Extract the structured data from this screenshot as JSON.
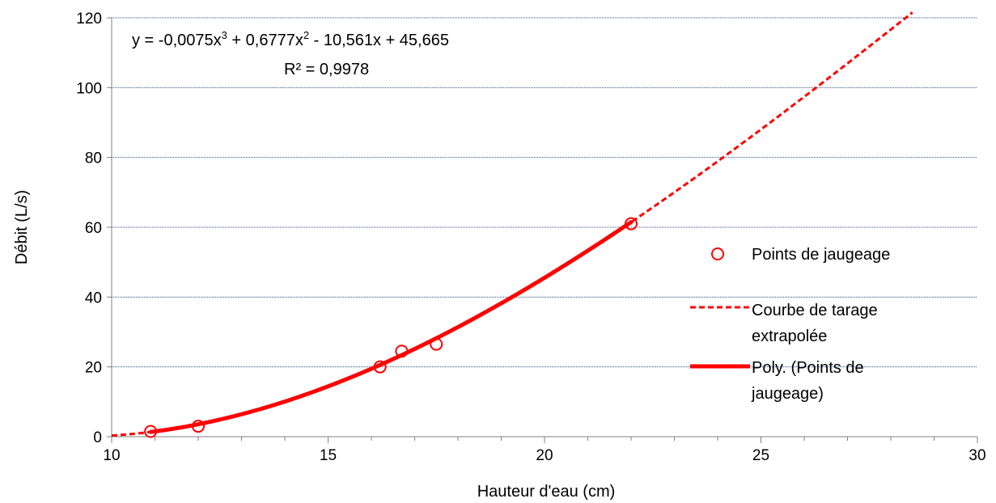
{
  "chart_data": {
    "type": "scatter",
    "title": "",
    "xlabel": "Hauteur d'eau (cm)",
    "ylabel": "Débit  (L/s)",
    "xlim": [
      10,
      30
    ],
    "ylim": [
      0,
      120
    ],
    "xticks": [
      "10",
      "15",
      "20",
      "25",
      "30"
    ],
    "yticks": [
      "0",
      "20",
      "40",
      "60",
      "80",
      "100",
      "120"
    ],
    "grid": "horizontal",
    "legend_position": "right",
    "series": [
      {
        "name": "Points de jaugeage",
        "kind": "scatter",
        "marker": "circle-open",
        "color": "#FF0000",
        "x": [
          10.9,
          12.0,
          16.2,
          16.7,
          17.5,
          22.0
        ],
        "y": [
          1.5,
          3.0,
          20.0,
          24.5,
          26.5,
          61.0
        ]
      },
      {
        "name": "Courbe de tarage extrapolée",
        "kind": "line",
        "style": "dashed",
        "color": "#FF0000",
        "x_range": [
          10,
          28.5
        ]
      },
      {
        "name": "Poly. (Points de jaugeage)",
        "kind": "trendline",
        "style": "solid",
        "color": "#FF0000",
        "x_range": [
          10.9,
          22.0
        ]
      }
    ],
    "trendline": {
      "coefficients": [
        -0.0075,
        0.6777,
        -10.561,
        45.665
      ]
    },
    "annotations": {
      "eq_prefix": "y = -0,0075x",
      "eq_sup1": "3",
      "eq_mid": " + 0,6777x",
      "eq_sup2": "2",
      "eq_suffix": " - 10,561x + 45,665",
      "r2": "R² = 0,9978"
    },
    "legend": {
      "points": "Points de jaugeage",
      "dashed_line1": "Courbe de tarage",
      "dashed_line2": "extrapolée",
      "solid_line1": "Poly. (Points de",
      "solid_line2": "jaugeage)"
    }
  },
  "colors": {
    "series": "#FF0000",
    "grid": "#2F4F7F",
    "axis": "#808080"
  }
}
